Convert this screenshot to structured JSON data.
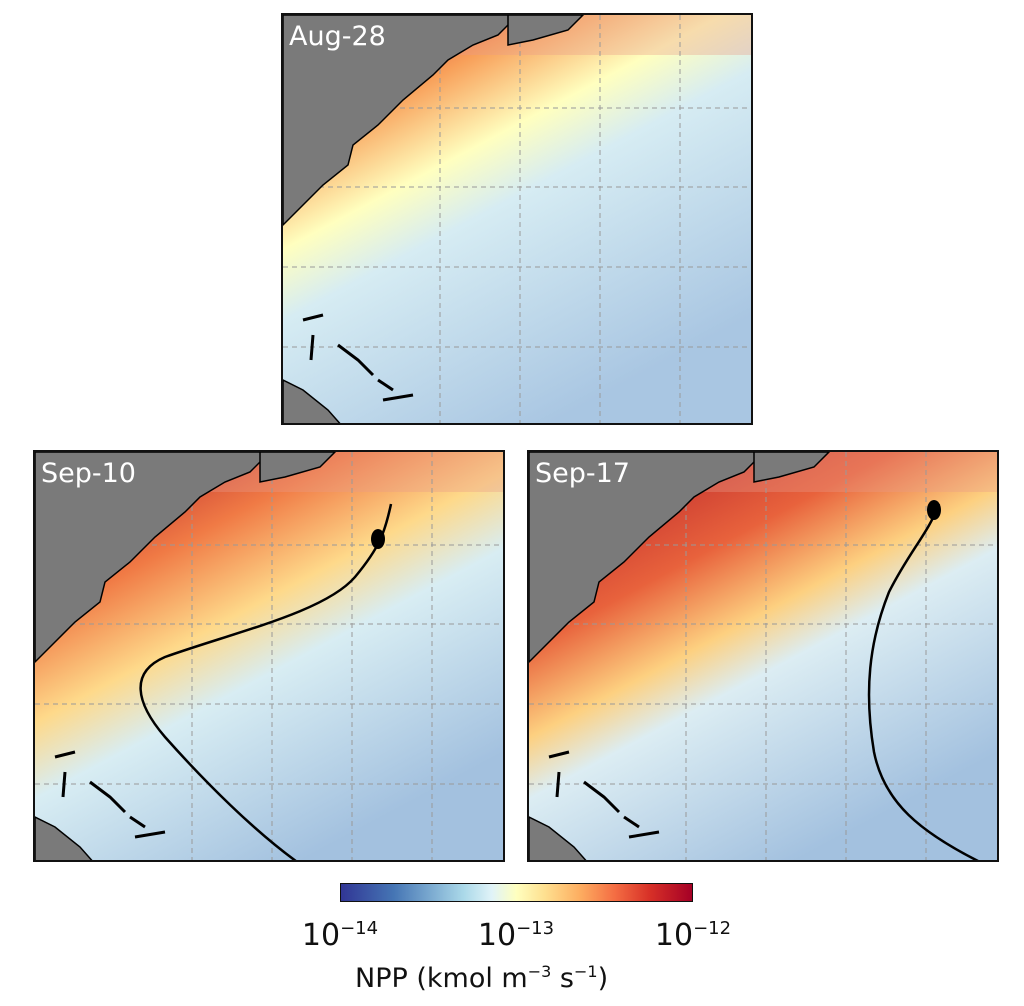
{
  "panels": [
    {
      "label": "Aug-28",
      "track": false
    },
    {
      "label": "Sep-10",
      "track": true
    },
    {
      "label": "Sep-17",
      "track": true
    }
  ],
  "colorbar": {
    "colormap": "RdYlBu_r",
    "scale": "log",
    "range": [
      1e-14,
      1e-12
    ],
    "ticks": [
      {
        "base": "10",
        "exp": "−14"
      },
      {
        "base": "10",
        "exp": "−13"
      },
      {
        "base": "10",
        "exp": "−12"
      }
    ],
    "label": {
      "text": "NPP (kmol m",
      "exp1": "−3",
      "mid": " s",
      "exp2": "−1",
      "end": ")"
    }
  },
  "colors": {
    "land": "#7a7a7a",
    "track": "#000000",
    "grid": "#999999"
  }
}
